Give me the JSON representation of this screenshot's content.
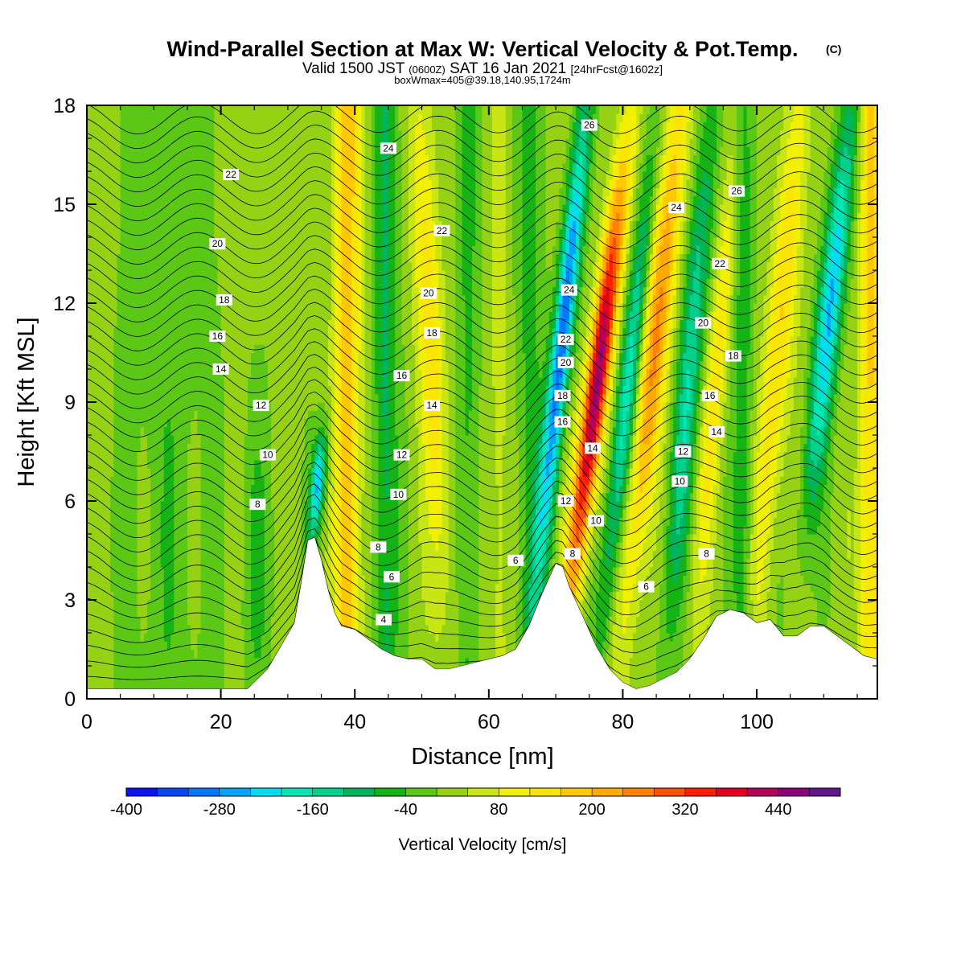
{
  "chart_data": {
    "type": "heatmap",
    "title": "Wind-Parallel Section at Max W: Vertical Velocity & Pot.Temp.",
    "title_mark": "(C)",
    "subtitle": {
      "part1": "Valid 1500 JST",
      "part2": "(0600Z)",
      "part3": "SAT 16 Jan 2021",
      "part4": "[24hrFcst@1602z]"
    },
    "subtitle2": "boxWmax=405@39.18,140.95,1724m",
    "xlabel": "Distance [nm]",
    "ylabel": "Height [Kft MSL]",
    "xlim": [
      0,
      118
    ],
    "ylim": [
      0,
      18
    ],
    "x_ticks": [
      "0",
      "20",
      "40",
      "60",
      "80",
      "100"
    ],
    "y_ticks": [
      "0",
      "3",
      "6",
      "9",
      "12",
      "15",
      "18"
    ],
    "colorbar": {
      "title": "Vertical Velocity [cm/s]",
      "tick_labels": [
        "-400",
        "-280",
        "-160",
        "-40",
        "80",
        "200",
        "320",
        "440"
      ],
      "levels": [
        -400,
        -360,
        -320,
        -280,
        -240,
        -200,
        -160,
        -120,
        -80,
        -40,
        0,
        40,
        80,
        120,
        160,
        200,
        240,
        280,
        320,
        360,
        400,
        440,
        480
      ],
      "colors": [
        "#0a14f0",
        "#0a46f5",
        "#0078fa",
        "#00a5fa",
        "#00dcf0",
        "#00e6b4",
        "#00d28c",
        "#00b45a",
        "#14b414",
        "#5ac814",
        "#96d214",
        "#c8e614",
        "#f0f000",
        "#fae600",
        "#ffc800",
        "#ffaa00",
        "#ff8200",
        "#ff5000",
        "#ff1e00",
        "#e1001e",
        "#b4005a",
        "#8c0078",
        "#64148c"
      ]
    },
    "terrain": [
      [
        0,
        0.3
      ],
      [
        24,
        0.3
      ],
      [
        27,
        0.9
      ],
      [
        29,
        1.6
      ],
      [
        31,
        2.3
      ],
      [
        32,
        3.5
      ],
      [
        33,
        4.8
      ],
      [
        34,
        4.9
      ],
      [
        35,
        4.2
      ],
      [
        36,
        3.3
      ],
      [
        37,
        2.6
      ],
      [
        38,
        2.2
      ],
      [
        40,
        2.1
      ],
      [
        42,
        1.8
      ],
      [
        44,
        1.5
      ],
      [
        46,
        1.3
      ],
      [
        48,
        1.2
      ],
      [
        50,
        1.2
      ],
      [
        52,
        0.9
      ],
      [
        54,
        0.9
      ],
      [
        58,
        1.1
      ],
      [
        62,
        1.3
      ],
      [
        64,
        1.5
      ],
      [
        66,
        2.2
      ],
      [
        68,
        3.2
      ],
      [
        70,
        4.1
      ],
      [
        71,
        4.0
      ],
      [
        72,
        3.4
      ],
      [
        74,
        2.5
      ],
      [
        76,
        1.6
      ],
      [
        78,
        0.9
      ],
      [
        80,
        0.5
      ],
      [
        82,
        0.3
      ],
      [
        84,
        0.4
      ],
      [
        86,
        0.6
      ],
      [
        88,
        0.8
      ],
      [
        90,
        1.2
      ],
      [
        92,
        1.8
      ],
      [
        94,
        2.5
      ],
      [
        96,
        2.7
      ],
      [
        98,
        2.6
      ],
      [
        100,
        2.3
      ],
      [
        102,
        2.4
      ],
      [
        104,
        1.9
      ],
      [
        106,
        1.9
      ],
      [
        108,
        2.2
      ],
      [
        110,
        2.2
      ],
      [
        112,
        1.9
      ],
      [
        114,
        1.6
      ],
      [
        116,
        1.3
      ],
      [
        118,
        1.2
      ]
    ],
    "theta_labels": [
      "4",
      "6",
      "6",
      "6",
      "8",
      "8",
      "8",
      "8",
      "10",
      "10",
      "10",
      "10",
      "12",
      "12",
      "12",
      "12",
      "14",
      "14",
      "14",
      "14",
      "16",
      "16",
      "16",
      "16",
      "18",
      "18",
      "18",
      "18",
      "20",
      "20",
      "20",
      "20",
      "22",
      "22",
      "22",
      "22",
      "24",
      "24",
      "24",
      "26",
      "26"
    ],
    "max_w_text": "405"
  }
}
